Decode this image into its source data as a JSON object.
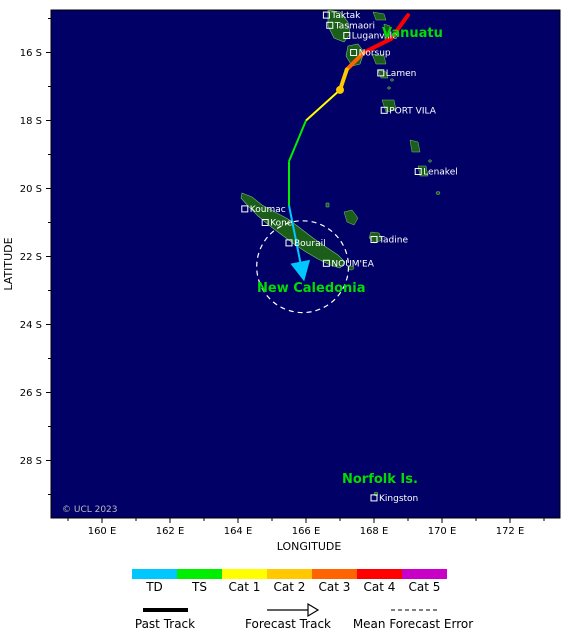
{
  "map": {
    "background": "#000066",
    "land_color": "#1a5e1a",
    "axes": {
      "xlabel": "LONGITUDE",
      "ylabel": "LATITUDE",
      "lon_ticks": [
        "160 E",
        "162 E",
        "164 E",
        "166 E",
        "168 E",
        "170 E",
        "172 E"
      ],
      "lat_ticks": [
        "16 S",
        "18 S",
        "20 S",
        "22 S",
        "24 S",
        "26 S",
        "28 S"
      ]
    },
    "places": [
      {
        "name": "Taktak",
        "lon": 166.6,
        "lat": 14.9
      },
      {
        "name": "Tasmaori",
        "lon": 166.7,
        "lat": 15.2
      },
      {
        "name": "Luganville",
        "lon": 167.2,
        "lat": 15.5
      },
      {
        "name": "Norsup",
        "lon": 167.4,
        "lat": 16.0
      },
      {
        "name": "Lamen",
        "lon": 168.2,
        "lat": 16.6
      },
      {
        "name": "PORT VILA",
        "lon": 168.3,
        "lat": 17.7
      },
      {
        "name": "Lenakel",
        "lon": 169.3,
        "lat": 19.5
      },
      {
        "name": "Koumac",
        "lon": 164.2,
        "lat": 20.6
      },
      {
        "name": "Kone",
        "lon": 164.8,
        "lat": 21.0
      },
      {
        "name": "Bourail",
        "lon": 165.5,
        "lat": 21.6
      },
      {
        "name": "Tadine",
        "lon": 168.0,
        "lat": 21.5
      },
      {
        "name": "NOUM'EA",
        "lon": 166.6,
        "lat": 22.2
      },
      {
        "name": "Kingston",
        "lon": 168.0,
        "lat": 29.1
      }
    ],
    "regions": [
      {
        "name": "Vanuatu"
      },
      {
        "name": "New Caledonia"
      },
      {
        "name": "Norfolk Is."
      }
    ],
    "copyright": "© UCL 2023"
  },
  "track": {
    "past": [
      {
        "lon": 169.0,
        "lat": 14.9,
        "cat": "Cat 4"
      },
      {
        "lon": 168.5,
        "lat": 15.6,
        "cat": "Cat 4"
      },
      {
        "lon": 167.7,
        "lat": 16.0,
        "cat": "Cat 3"
      },
      {
        "lon": 167.2,
        "lat": 16.5,
        "cat": "Cat 2"
      },
      {
        "lon": 167.0,
        "lat": 17.1,
        "cat": "Cat 2"
      }
    ],
    "forecast": [
      {
        "lon": 167.0,
        "lat": 17.1,
        "cat": "Cat 1"
      },
      {
        "lon": 166.0,
        "lat": 18.0,
        "cat": "TS"
      },
      {
        "lon": 165.5,
        "lat": 19.2,
        "cat": "TS"
      },
      {
        "lon": 165.5,
        "lat": 20.5,
        "cat": "TS"
      },
      {
        "lon": 165.9,
        "lat": 22.5,
        "cat": "TD"
      }
    ],
    "current_position": {
      "lon": 167.0,
      "lat": 17.1
    },
    "error_circle": {
      "lon": 165.9,
      "lat": 22.3,
      "radius_deg": 1.35
    }
  },
  "legend": {
    "categories": [
      {
        "label": "TD",
        "color": "#00c8ff"
      },
      {
        "label": "TS",
        "color": "#00ee00"
      },
      {
        "label": "Cat 1",
        "color": "#ffff00"
      },
      {
        "label": "Cat 2",
        "color": "#ffc800"
      },
      {
        "label": "Cat 3",
        "color": "#ff6400"
      },
      {
        "label": "Cat 4",
        "color": "#ff0000"
      },
      {
        "label": "Cat 5",
        "color": "#c800c8"
      }
    ],
    "past_track": "Past Track",
    "forecast_track": "Forecast Track",
    "mean_error": "Mean Forecast Error"
  }
}
